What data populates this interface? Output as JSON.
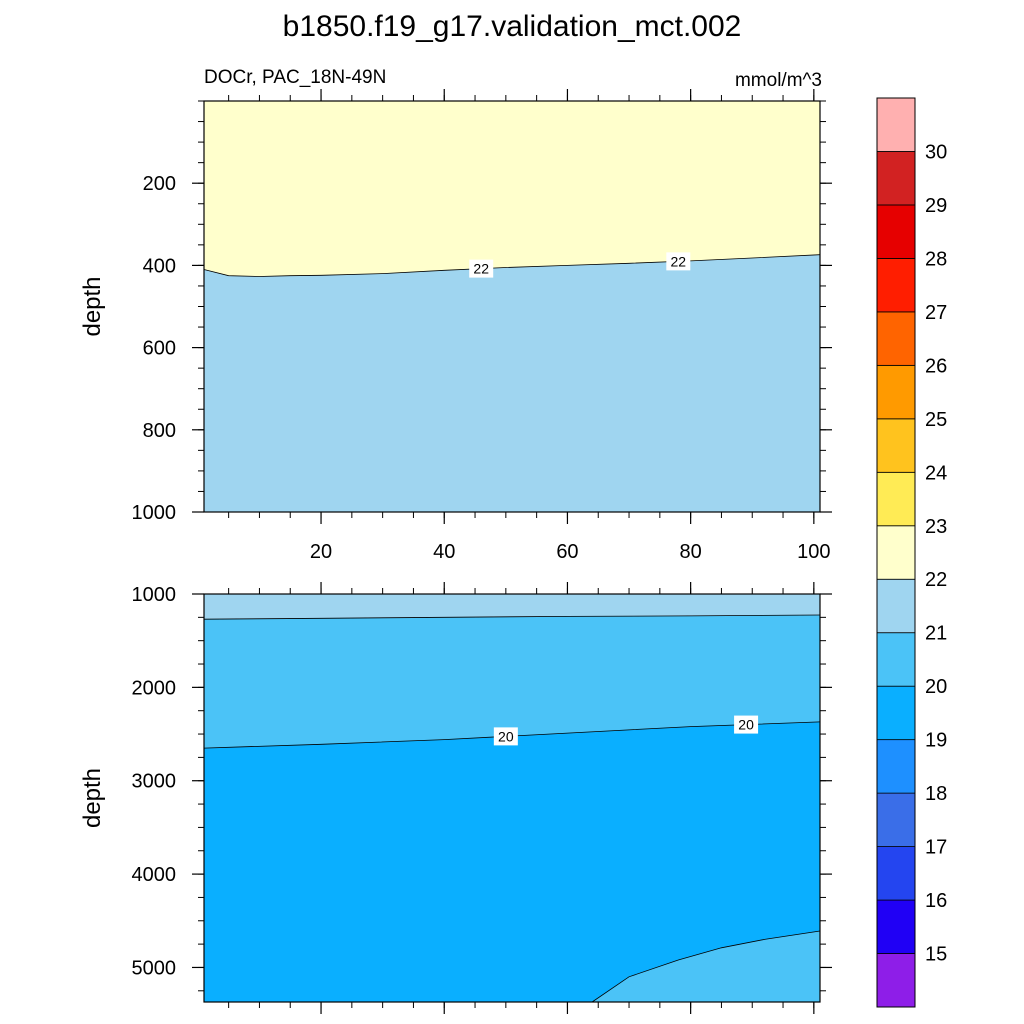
{
  "title": "b1850.f19_g17.validation_mct.002",
  "chart_data": {
    "type": "contour",
    "variable_label": "DOCr, PAC_18N-49N",
    "units_label": "mmol/m^3",
    "colorbar": {
      "levels": [
        "15",
        "16",
        "17",
        "18",
        "19",
        "20",
        "21",
        "22",
        "23",
        "24",
        "25",
        "26",
        "27",
        "28",
        "29",
        "30"
      ],
      "colors": [
        "#8e1ee8",
        "#2000f5",
        "#2445f0",
        "#3a6ee8",
        "#1e90ff",
        "#0aafff",
        "#4bc3f7",
        "#9fd5f0",
        "#ffffcc",
        "#ffeb55",
        "#ffc31e",
        "#ff9a00",
        "#ff6400",
        "#ff1e00",
        "#e60000",
        "#d22222",
        "#ffb0b0"
      ]
    },
    "panels": [
      {
        "name": "upper",
        "ylabel": "depth",
        "xlim": [
          1,
          101
        ],
        "ylim": [
          0,
          1000
        ],
        "yticks": [
          "200",
          "400",
          "600",
          "800",
          "1000"
        ],
        "xticks": [
          "20",
          "40",
          "60",
          "80",
          "100"
        ],
        "contour_lines": [
          {
            "level": 22,
            "labels": [
              "22",
              "22"
            ],
            "x": [
              1,
              5,
              10,
              15,
              20,
              30,
              40,
              50,
              60,
              70,
              80,
              90,
              101
            ],
            "y": [
              410,
              425,
              427,
              425,
              424,
              420,
              412,
              405,
              400,
              395,
              389,
              382,
              374
            ]
          }
        ],
        "regions": [
          {
            "value_range": "22–23",
            "color": "#ffffcc",
            "location": "above 22 contour"
          },
          {
            "value_range": "21–22",
            "color": "#9fd5f0",
            "location": "below 22 contour"
          }
        ]
      },
      {
        "name": "lower",
        "ylabel": "depth",
        "xlim": [
          1,
          101
        ],
        "ylim": [
          1000,
          5370
        ],
        "yticks": [
          "1000",
          "2000",
          "3000",
          "4000",
          "5000"
        ],
        "xticks": [
          "20",
          "40",
          "60",
          "80",
          "100"
        ],
        "contour_lines": [
          {
            "level": 21,
            "labels": [],
            "x": [
              1,
              20,
              40,
              60,
              80,
              101
            ],
            "y": [
              1270,
              1260,
              1250,
              1240,
              1235,
              1225
            ]
          },
          {
            "level": 20,
            "labels": [
              "20",
              "20"
            ],
            "x": [
              1,
              20,
              40,
              60,
              80,
              101
            ],
            "y": [
              2650,
              2610,
              2560,
              2490,
              2420,
              2370
            ]
          },
          {
            "level": 20,
            "labels": [],
            "x": [
              64,
              70,
              78,
              85,
              92,
              101
            ],
            "y": [
              5370,
              5100,
              4920,
              4790,
              4700,
              4610
            ]
          }
        ],
        "regions": [
          {
            "value_range": "21–22",
            "color": "#9fd5f0",
            "location": "top band"
          },
          {
            "value_range": "20–21",
            "color": "#4bc3f7",
            "location": "middle band and bottom-right"
          },
          {
            "value_range": "19–20",
            "color": "#0aafff",
            "location": "deep region"
          }
        ]
      }
    ]
  }
}
